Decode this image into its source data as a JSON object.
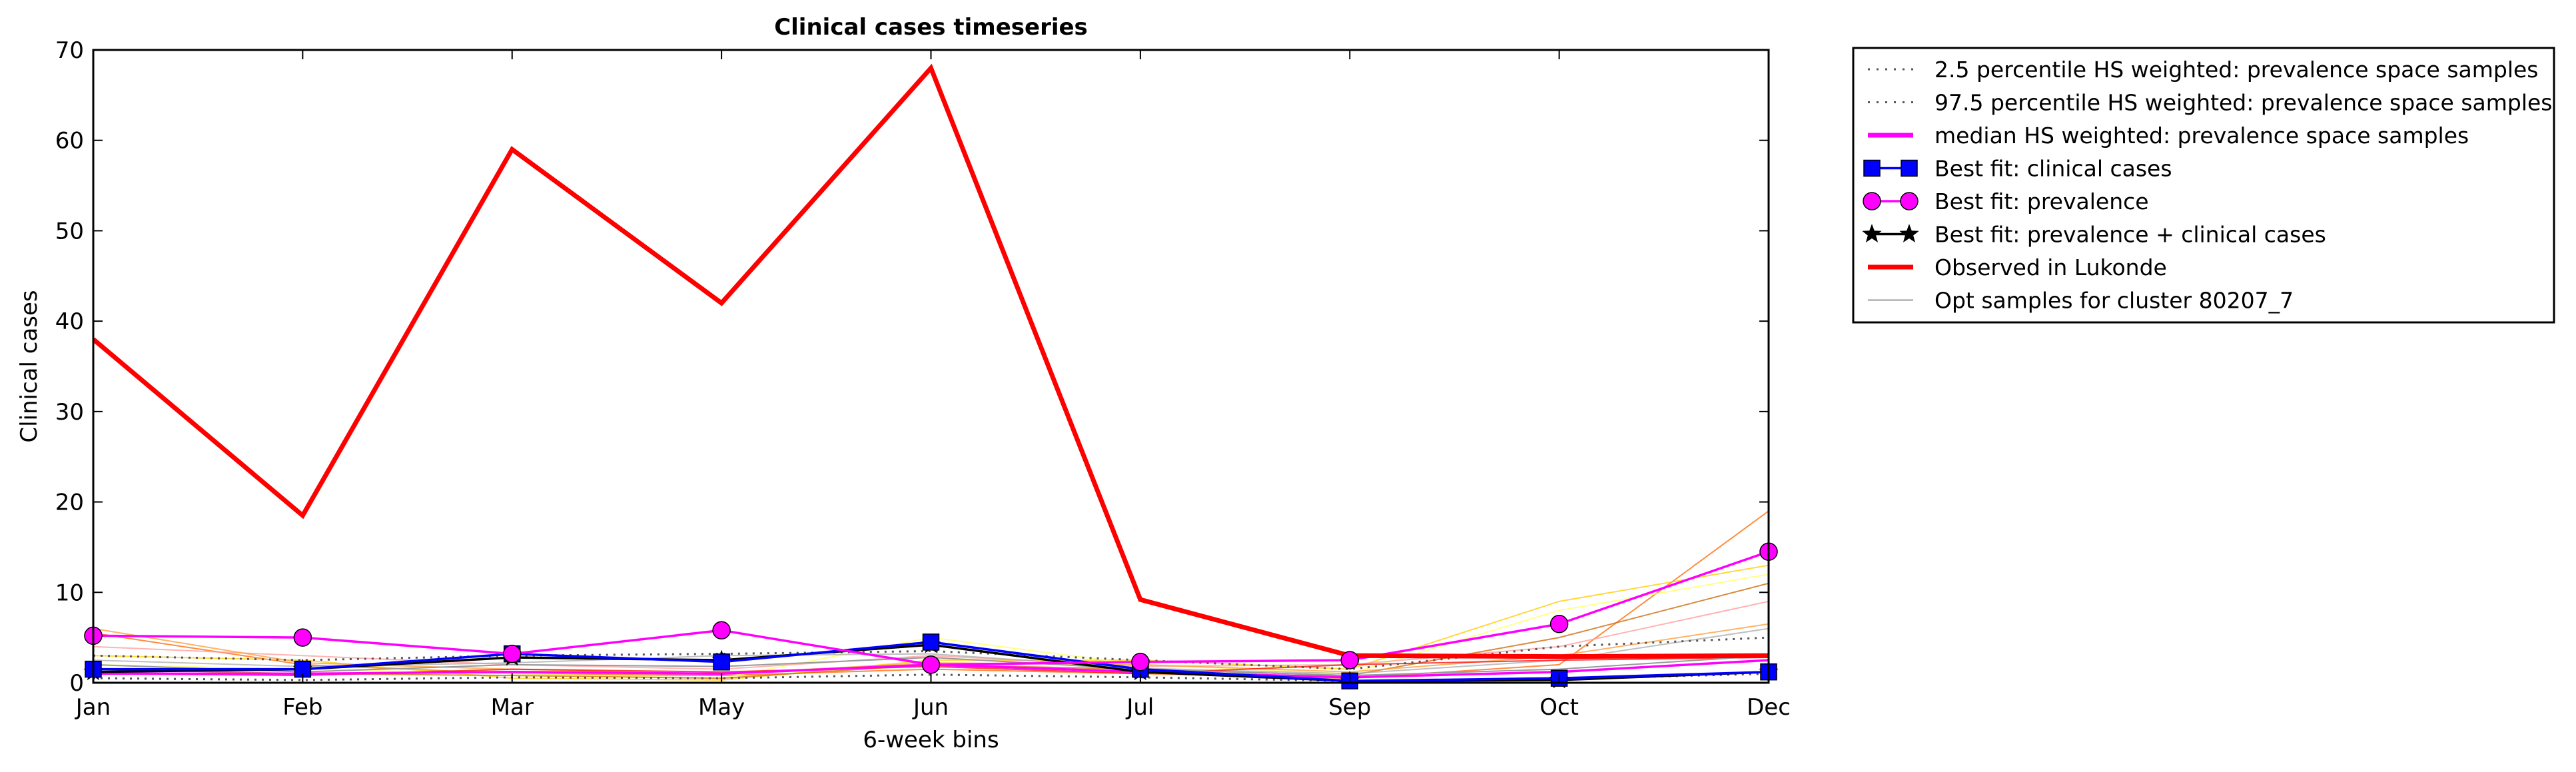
{
  "chart_data": {
    "type": "line",
    "title": "Clinical cases timeseries",
    "xlabel": "6-week bins",
    "ylabel": "Clinical cases",
    "categories": [
      "Jan",
      "Feb",
      "Mar",
      "May",
      "Jun",
      "Jul",
      "Sep",
      "Oct",
      "Dec"
    ],
    "ylim": [
      0,
      70
    ],
    "yticks": [
      0,
      10,
      20,
      30,
      40,
      50,
      60,
      70
    ],
    "grid": false,
    "legend_position": "outside-right-top",
    "series": [
      {
        "name": "2.5 percentile HS weighted: prevalence space samples",
        "color": "#555555",
        "style": "dotted",
        "values": [
          0.5,
          0.3,
          0.6,
          0.5,
          0.9,
          0.6,
          0.2,
          0.4,
          1.0
        ]
      },
      {
        "name": "97.5 percentile HS weighted: prevalence space samples",
        "color": "#555555",
        "style": "dotted",
        "values": [
          3.0,
          2.5,
          3.0,
          3.2,
          3.5,
          2.5,
          1.5,
          4.0,
          5.0
        ]
      },
      {
        "name": "median HS weighted: prevalence space samples",
        "color": "#ff00ff",
        "style": "solid",
        "values": [
          1.0,
          1.0,
          1.2,
          1.0,
          2.0,
          1.2,
          0.6,
          1.2,
          2.5
        ]
      },
      {
        "name": "Best fit: clinical cases",
        "color": "#0000ff",
        "style": "square-markers",
        "values": [
          1.5,
          1.5,
          3.2,
          2.3,
          4.5,
          1.5,
          0.2,
          0.5,
          1.2
        ]
      },
      {
        "name": "Best fit: prevalence",
        "color": "#ff00ff",
        "style": "circle-markers",
        "values": [
          5.2,
          5.0,
          3.2,
          5.8,
          2.0,
          2.3,
          2.5,
          6.5,
          14.5
        ]
      },
      {
        "name": "Best fit: prevalence + clinical cases",
        "color": "#000000",
        "style": "star-markers",
        "values": [
          1.2,
          1.5,
          2.8,
          2.5,
          4.2,
          1.2,
          0.2,
          0.3,
          1.2
        ]
      },
      {
        "name": "Observed in Lukonde",
        "color": "#ff0000",
        "style": "thick",
        "values": [
          38,
          18.5,
          59,
          42,
          68,
          9.2,
          3.0,
          2.9,
          3.0
        ]
      },
      {
        "name": "Opt samples for cluster 80207_7",
        "color": "#999999",
        "style": "thin",
        "values": [
          2.0,
          1.2,
          2.0,
          1.8,
          2.8,
          1.5,
          0.8,
          1.5,
          3.0
        ]
      }
    ],
    "background_samples": [
      {
        "color": "#ff6600",
        "values": [
          5.5,
          2.0,
          1.0,
          0.8,
          1.5,
          1.0,
          0.5,
          2.0,
          19.0
        ]
      },
      {
        "color": "#ffcc00",
        "values": [
          3.0,
          2.5,
          0.5,
          0.3,
          2.5,
          2.5,
          1.5,
          9.0,
          13.0
        ]
      },
      {
        "color": "#ffff66",
        "values": [
          2.0,
          1.5,
          1.0,
          0.5,
          5.0,
          2.0,
          1.0,
          8.0,
          12.0
        ]
      },
      {
        "color": "#ff9999",
        "values": [
          4.0,
          3.0,
          2.0,
          1.5,
          3.0,
          1.8,
          2.0,
          4.0,
          9.0
        ]
      },
      {
        "color": "#cc6600",
        "values": [
          1.5,
          1.0,
          0.8,
          0.5,
          2.0,
          1.5,
          0.8,
          5.0,
          11.0
        ]
      },
      {
        "color": "#ff9933",
        "values": [
          6.0,
          2.2,
          1.5,
          1.0,
          2.2,
          2.0,
          1.2,
          3.0,
          6.5
        ]
      },
      {
        "color": "#aaaaaa",
        "values": [
          2.5,
          1.8,
          2.2,
          3.0,
          3.2,
          1.6,
          1.0,
          2.5,
          6.0
        ]
      },
      {
        "color": "#ff0000",
        "values": [
          1.0,
          0.8,
          1.5,
          1.2,
          1.8,
          1.0,
          2.0,
          2.5,
          2.8
        ]
      }
    ],
    "legend_order": [
      0,
      1,
      2,
      3,
      4,
      5,
      6,
      7
    ]
  }
}
